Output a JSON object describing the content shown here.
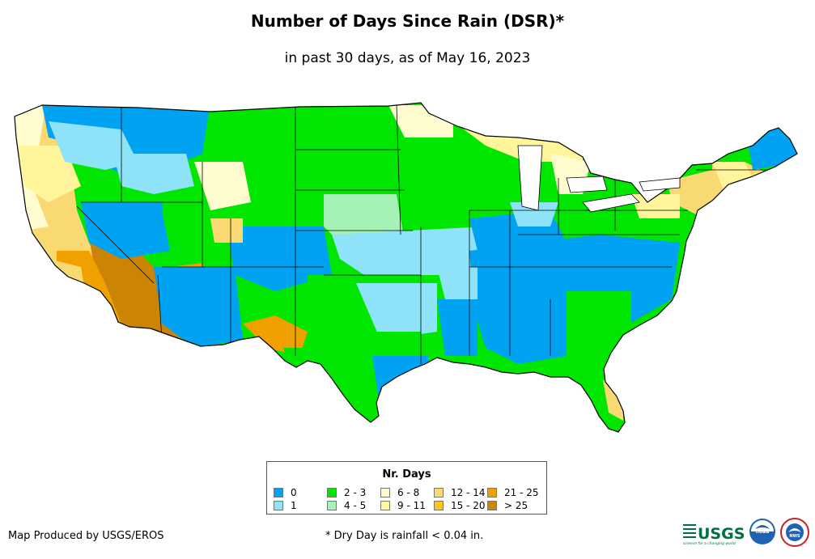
{
  "header": {
    "title": "Number of Days Since Rain (DSR)*",
    "subtitle": "in past 30 days, as of May 16, 2023"
  },
  "map": {
    "region": "contiguous-united-states",
    "colors": {
      "land_outline": "#000000",
      "water": "#ffffff"
    }
  },
  "legend": {
    "title": "Nr. Days",
    "items": [
      {
        "label": "0",
        "color": "#00a2f2"
      },
      {
        "label": "1",
        "color": "#8fe3f8"
      },
      {
        "label": "2 - 3",
        "color": "#00e600"
      },
      {
        "label": "4 - 5",
        "color": "#a6f2b4"
      },
      {
        "label": "6 - 8",
        "color": "#fffccf"
      },
      {
        "label": "9 - 11",
        "color": "#fff59a"
      },
      {
        "label": "12 - 14",
        "color": "#f9da72"
      },
      {
        "label": "15 - 20",
        "color": "#ffc51a"
      },
      {
        "label": "21 - 25",
        "color": "#f0a100"
      },
      {
        "label": "> 25",
        "color": "#cc8405"
      }
    ]
  },
  "footer": {
    "credit": "Map Produced by USGS/EROS",
    "footnote": "* Dry Day is rainfall < 0.04 in.",
    "logos": {
      "usgs_text": "USGS",
      "usgs_tagline": "science for a changing world",
      "noaa_text": "noaa",
      "nws_text": "NWS"
    }
  }
}
